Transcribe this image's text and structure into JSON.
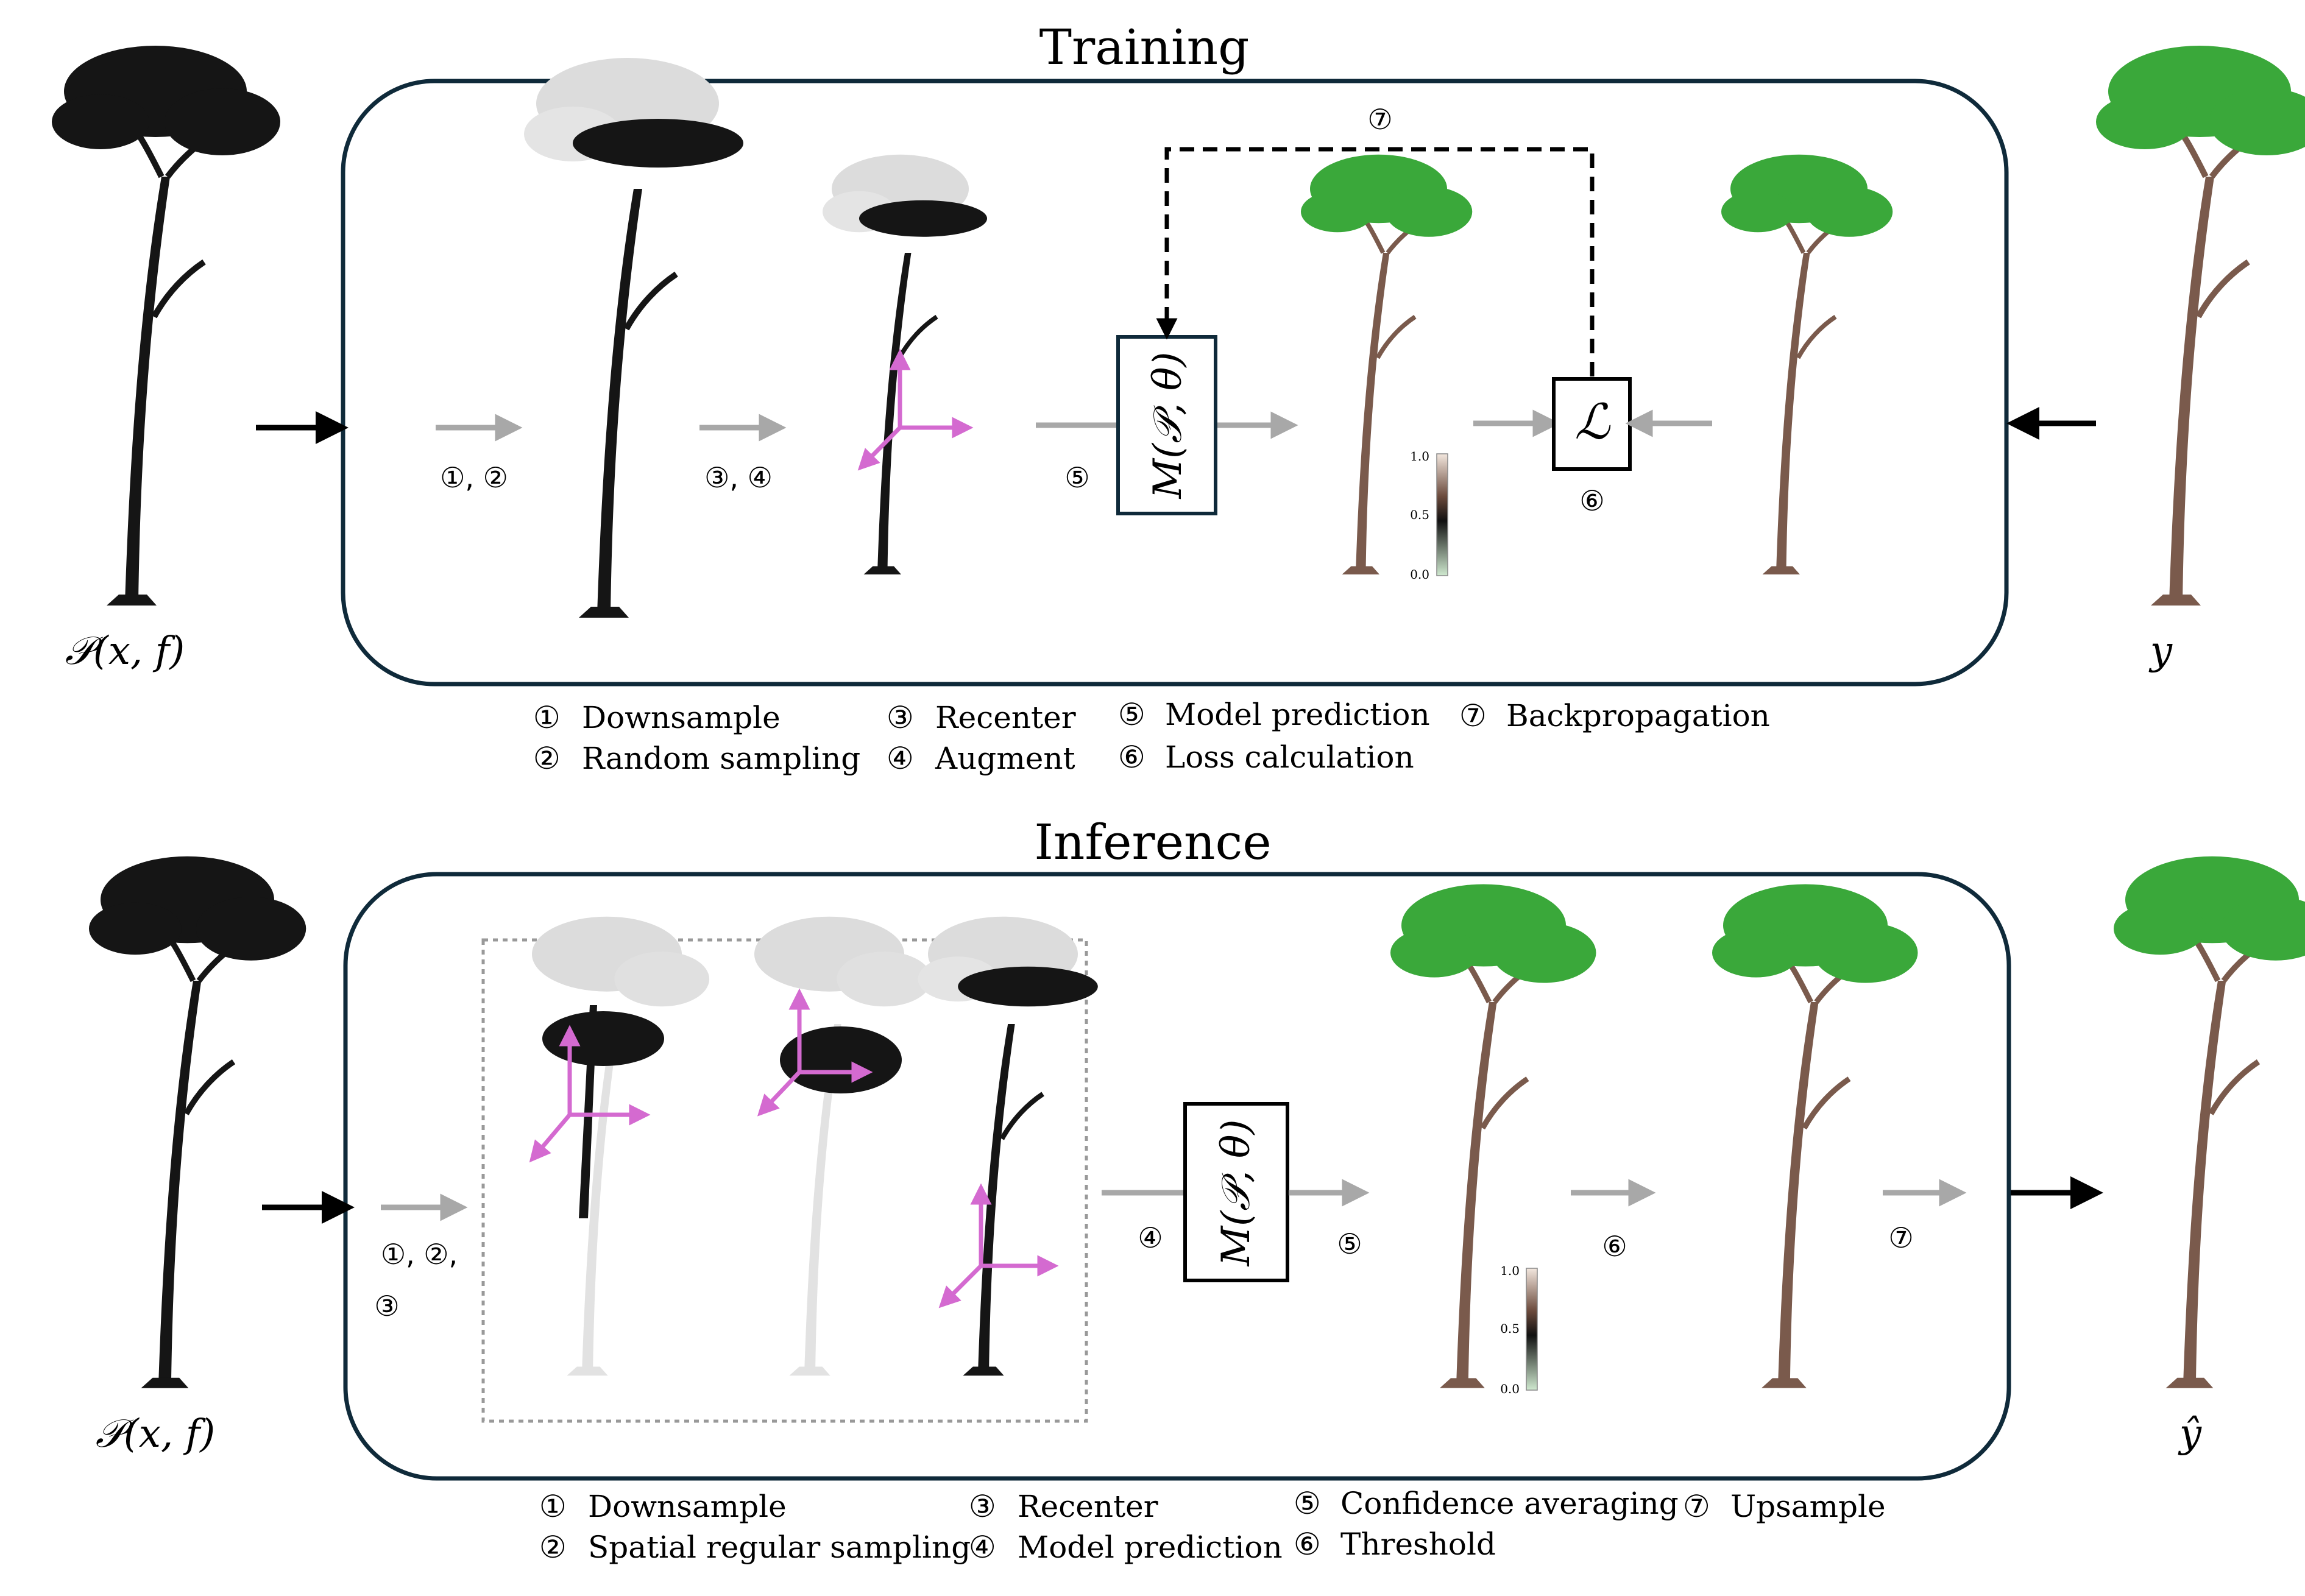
{
  "training": {
    "title": "Training",
    "input_label": "𝒫(x, f)",
    "target_label": "y",
    "model_label": "M(𝒫, θ)",
    "loss_label": "ℒ",
    "arrow_labels": {
      "a12": "①, ②",
      "a34": "③, ④",
      "a5": "⑤",
      "a6": "⑥",
      "a7": "⑦"
    },
    "colorbar_ticks": [
      "1.0",
      "0.5",
      "0.0"
    ],
    "legend": [
      {
        "num": "①",
        "text": "Downsample"
      },
      {
        "num": "②",
        "text": "Random sampling"
      },
      {
        "num": "③",
        "text": "Recenter"
      },
      {
        "num": "④",
        "text": "Augment"
      },
      {
        "num": "⑤",
        "text": "Model prediction"
      },
      {
        "num": "⑥",
        "text": "Loss calculation"
      },
      {
        "num": "⑦",
        "text": "Backpropagation"
      }
    ]
  },
  "inference": {
    "title": "Inference",
    "input_label": "𝒫(x, f)",
    "output_label": "ŷ",
    "model_label": "M(𝒫, θ)",
    "arrow_labels": {
      "a12": "①, ②,",
      "a3": "③",
      "a4": "④",
      "a5": "⑤",
      "a6": "⑥",
      "a7": "⑦"
    },
    "colorbar_ticks": [
      "1.0",
      "0.5",
      "0.0"
    ],
    "legend": [
      {
        "num": "①",
        "text": "Downsample"
      },
      {
        "num": "②",
        "text": "Spatial regular sampling"
      },
      {
        "num": "③",
        "text": "Recenter"
      },
      {
        "num": "④",
        "text": "Model prediction"
      },
      {
        "num": "⑤",
        "text": "Confidence averaging"
      },
      {
        "num": "⑥",
        "text": "Threshold"
      },
      {
        "num": "⑦",
        "text": "Upsample"
      }
    ]
  },
  "colors": {
    "panel_border": "#0f2a3a",
    "black_tree": "#151515",
    "brown_tree": "#7a5a4c",
    "green_leaf": "#3aa83a",
    "gray_arrow": "#a8a8a8",
    "magenta_axes": "#d46ad0",
    "faded_tree": "#d8d8d8"
  }
}
